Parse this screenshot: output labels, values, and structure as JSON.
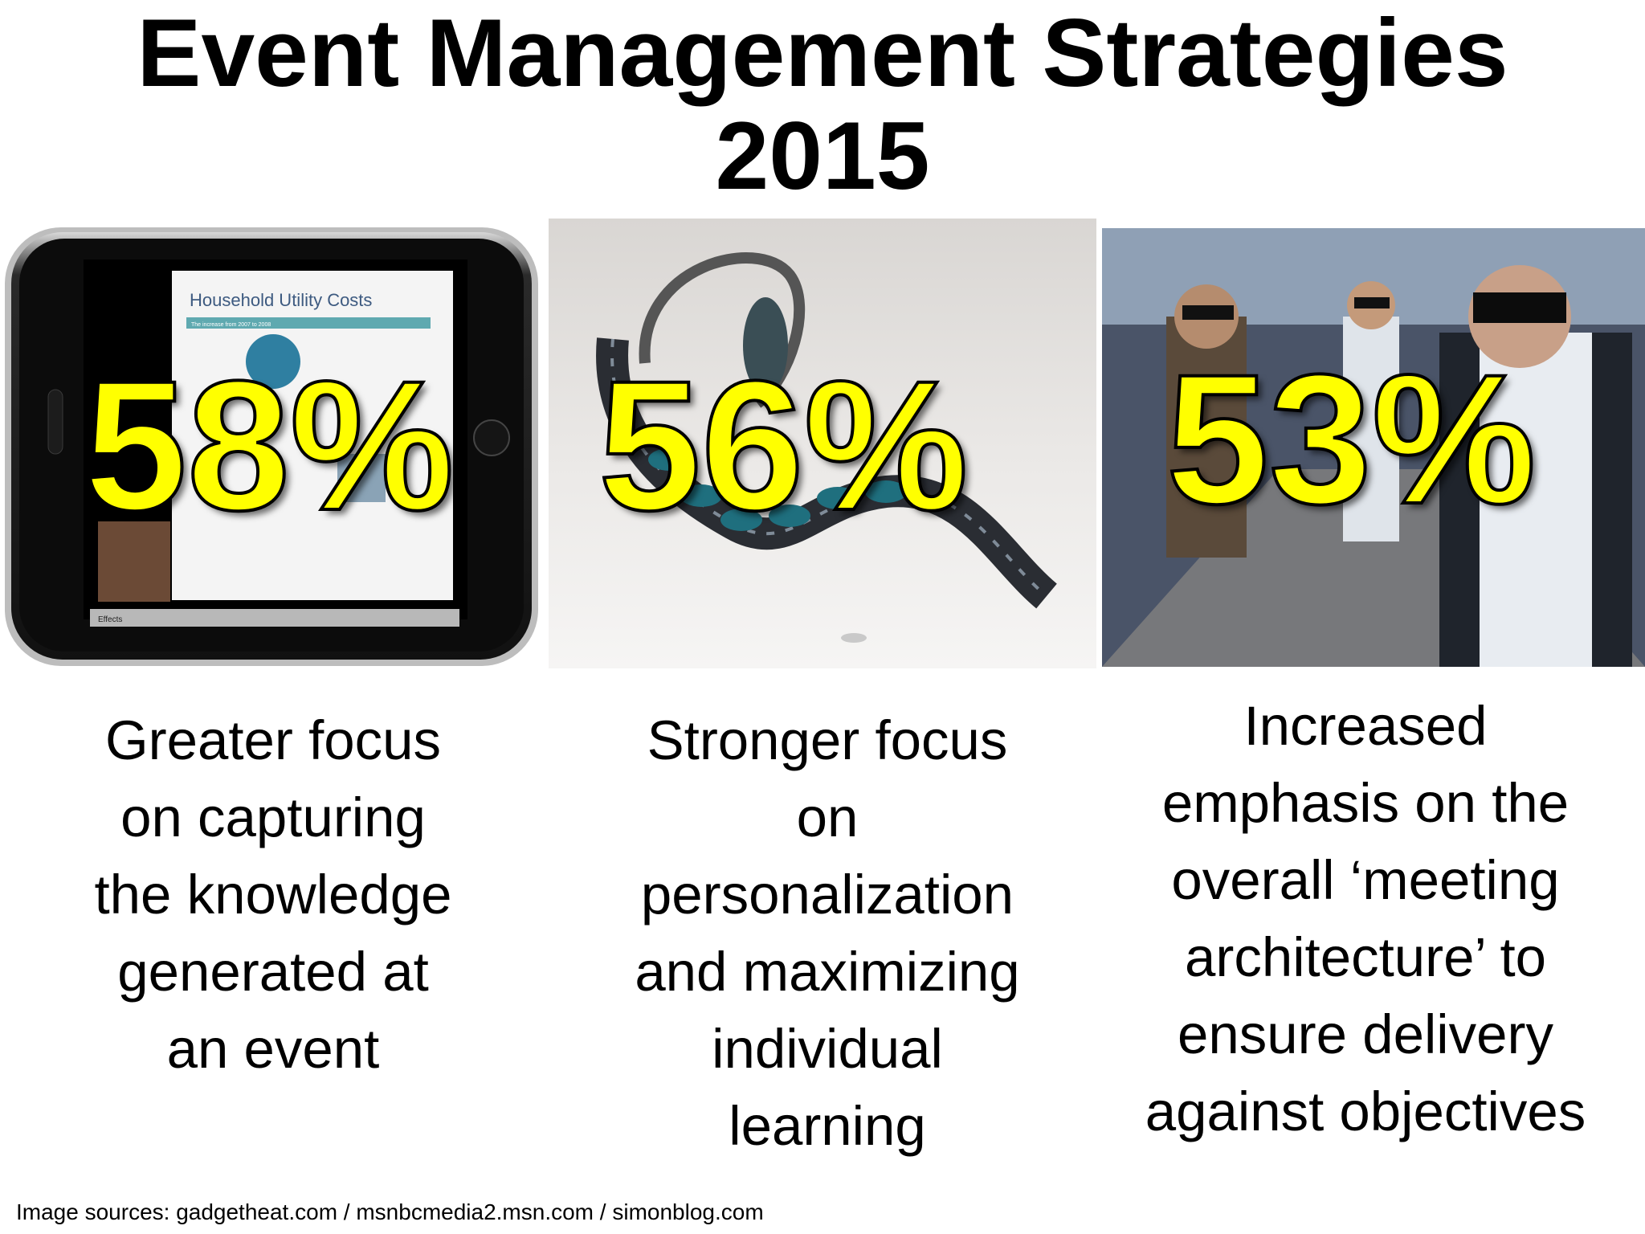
{
  "title": {
    "line1": "Event Management Strategies",
    "line2": "2015"
  },
  "panels": [
    {
      "percent": "58%",
      "image_screen_title": "Household Utility Costs",
      "image_screen_subtitle": "The increase from 2007 to 2008",
      "image_button_label": "Effects",
      "description": [
        "Greater focus",
        "on capturing",
        "the knowledge",
        "generated at",
        "an event"
      ]
    },
    {
      "percent": "56%",
      "description": [
        "Stronger focus",
        "on",
        "personalization",
        "and maximizing",
        "individual",
        "learning"
      ]
    },
    {
      "percent": "53%",
      "description": [
        "Increased",
        "emphasis on the",
        "overall ‘meeting",
        "architecture’ to",
        "ensure delivery",
        "against objectives"
      ]
    }
  ],
  "sources": "Image sources: gadgetheat.com / msnbcmedia2.msn.com / simonblog.com",
  "colors": {
    "percent_fill": "#ffff00",
    "percent_outline": "#000000",
    "background": "#ffffff"
  }
}
